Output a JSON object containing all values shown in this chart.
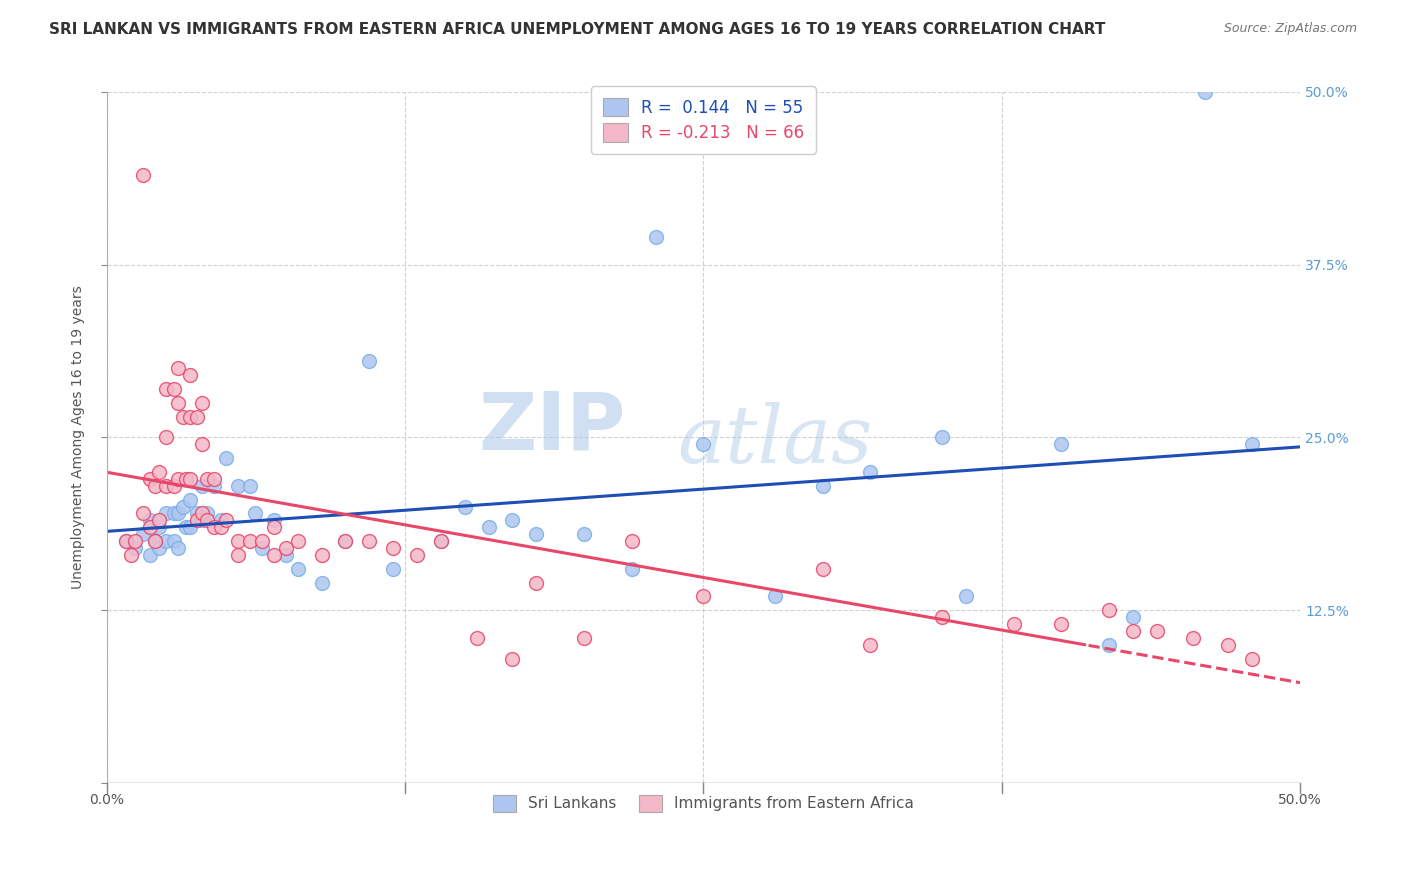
{
  "title": "SRI LANKAN VS IMMIGRANTS FROM EASTERN AFRICA UNEMPLOYMENT AMONG AGES 16 TO 19 YEARS CORRELATION CHART",
  "source": "Source: ZipAtlas.com",
  "ylabel": "Unemployment Among Ages 16 to 19 years",
  "xlim": [
    0.0,
    0.5
  ],
  "ylim": [
    0.0,
    0.5
  ],
  "xtick_vals": [
    0.0,
    0.125,
    0.25,
    0.375,
    0.5
  ],
  "ytick_vals": [
    0.0,
    0.125,
    0.25,
    0.375,
    0.5
  ],
  "right_ytick_vals": [
    0.125,
    0.25,
    0.375,
    0.5
  ],
  "watermark_zip": "ZIP",
  "watermark_atlas": "atlas",
  "legend_entries": [
    {
      "label": "Sri Lankans",
      "R": "0.144",
      "N": "55",
      "patch_color": "#aec6f0",
      "text_color": "#1f4fb5"
    },
    {
      "label": "Immigrants from Eastern Africa",
      "R": "-0.213",
      "N": "66",
      "patch_color": "#f4b8c8",
      "text_color": "#e8476a"
    }
  ],
  "sri_lankans": {
    "color": "#aec6f0",
    "edge_color": "#7ab0e8",
    "R": 0.144,
    "N": 55,
    "x": [
      0.008,
      0.012,
      0.015,
      0.018,
      0.018,
      0.02,
      0.022,
      0.022,
      0.025,
      0.025,
      0.028,
      0.028,
      0.03,
      0.03,
      0.032,
      0.033,
      0.035,
      0.035,
      0.038,
      0.04,
      0.04,
      0.042,
      0.045,
      0.048,
      0.05,
      0.055,
      0.06,
      0.062,
      0.065,
      0.07,
      0.075,
      0.08,
      0.09,
      0.1,
      0.11,
      0.12,
      0.14,
      0.15,
      0.16,
      0.17,
      0.18,
      0.2,
      0.22,
      0.23,
      0.25,
      0.28,
      0.3,
      0.32,
      0.35,
      0.36,
      0.4,
      0.42,
      0.43,
      0.46,
      0.48
    ],
    "y": [
      0.175,
      0.17,
      0.18,
      0.19,
      0.165,
      0.175,
      0.185,
      0.17,
      0.195,
      0.175,
      0.195,
      0.175,
      0.195,
      0.17,
      0.2,
      0.185,
      0.205,
      0.185,
      0.195,
      0.215,
      0.19,
      0.195,
      0.215,
      0.19,
      0.235,
      0.215,
      0.215,
      0.195,
      0.17,
      0.19,
      0.165,
      0.155,
      0.145,
      0.175,
      0.305,
      0.155,
      0.175,
      0.2,
      0.185,
      0.19,
      0.18,
      0.18,
      0.155,
      0.395,
      0.245,
      0.135,
      0.215,
      0.225,
      0.25,
      0.135,
      0.245,
      0.1,
      0.12,
      0.5,
      0.245
    ]
  },
  "eastern_africa": {
    "color": "#f4b8c8",
    "edge_color": "#e8476a",
    "R": -0.213,
    "N": 66,
    "x": [
      0.008,
      0.01,
      0.012,
      0.015,
      0.015,
      0.018,
      0.018,
      0.02,
      0.02,
      0.022,
      0.022,
      0.025,
      0.025,
      0.025,
      0.028,
      0.028,
      0.03,
      0.03,
      0.03,
      0.032,
      0.033,
      0.035,
      0.035,
      0.035,
      0.038,
      0.038,
      0.04,
      0.04,
      0.04,
      0.042,
      0.042,
      0.045,
      0.045,
      0.048,
      0.05,
      0.055,
      0.055,
      0.06,
      0.065,
      0.07,
      0.07,
      0.075,
      0.08,
      0.09,
      0.1,
      0.11,
      0.12,
      0.13,
      0.14,
      0.155,
      0.17,
      0.18,
      0.2,
      0.22,
      0.25,
      0.3,
      0.32,
      0.35,
      0.38,
      0.4,
      0.42,
      0.43,
      0.44,
      0.455,
      0.47,
      0.48
    ],
    "y": [
      0.175,
      0.165,
      0.175,
      0.44,
      0.195,
      0.22,
      0.185,
      0.215,
      0.175,
      0.225,
      0.19,
      0.285,
      0.25,
      0.215,
      0.285,
      0.215,
      0.3,
      0.275,
      0.22,
      0.265,
      0.22,
      0.295,
      0.265,
      0.22,
      0.265,
      0.19,
      0.275,
      0.245,
      0.195,
      0.22,
      0.19,
      0.22,
      0.185,
      0.185,
      0.19,
      0.175,
      0.165,
      0.175,
      0.175,
      0.185,
      0.165,
      0.17,
      0.175,
      0.165,
      0.175,
      0.175,
      0.17,
      0.165,
      0.175,
      0.105,
      0.09,
      0.145,
      0.105,
      0.175,
      0.135,
      0.155,
      0.1,
      0.12,
      0.115,
      0.115,
      0.125,
      0.11,
      0.11,
      0.105,
      0.1,
      0.09
    ]
  },
  "blue_line_color": "#1f4fb5",
  "pink_line_color": "#e8476a",
  "pink_line_dashed_from": 0.41,
  "background_color": "#ffffff",
  "grid_color": "#cccccc",
  "title_fontsize": 11,
  "axis_label_fontsize": 10,
  "tick_fontsize": 10,
  "source_fontsize": 9
}
